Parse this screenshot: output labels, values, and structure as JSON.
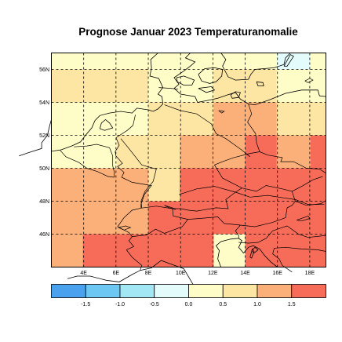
{
  "title": "Prognose Januar 2023 Temperaturanomalie",
  "map": {
    "lon_range": [
      2.0,
      19.0
    ],
    "lat_range": [
      44.0,
      57.0
    ],
    "lat_ticks": [
      "56N",
      "54N",
      "52N",
      "50N",
      "48N",
      "46N"
    ],
    "lat_values": [
      56,
      54,
      52,
      50,
      48,
      46
    ],
    "lon_ticks": [
      "4E",
      "6E",
      "8E",
      "10E",
      "12E",
      "14E",
      "16E",
      "18E"
    ],
    "lon_values": [
      4,
      6,
      8,
      10,
      12,
      14,
      16,
      18
    ],
    "colors": {
      "bin_-1.25": "#5bbcee",
      "bin_-0.25": "#e3fbfb",
      "bin_0.25": "#fefdc7",
      "bin_0.75": "#fde6a3",
      "bin_1.25": "#fcb079",
      "bin_1.75": "#f76b59"
    },
    "grid_columns": [
      [
        2,
        3.95
      ],
      [
        3.95,
        6.05
      ],
      [
        6.05,
        8.0
      ],
      [
        8.0,
        9.95
      ],
      [
        9.95,
        12.05
      ],
      [
        12.05,
        14.0
      ],
      [
        14.0,
        15.95
      ],
      [
        15.95,
        18.05
      ],
      [
        18.05,
        19.0
      ]
    ],
    "grid_rows": [
      [
        56,
        57
      ],
      [
        54,
        56
      ],
      [
        52,
        54
      ],
      [
        50,
        52
      ],
      [
        48,
        50
      ],
      [
        46,
        48
      ],
      [
        44,
        46
      ]
    ],
    "cells": [
      [
        0.25,
        0.25,
        0.25,
        0.25,
        0.25,
        0.25,
        0.25,
        -0.25,
        0.25
      ],
      [
        0.75,
        0.75,
        0.75,
        0.25,
        0.25,
        0.75,
        0.75,
        0.25,
        0.25
      ],
      [
        0.25,
        0.25,
        0.25,
        0.75,
        0.75,
        1.25,
        1.25,
        0.75,
        0.75
      ],
      [
        0.25,
        0.25,
        0.75,
        0.75,
        1.25,
        1.25,
        1.75,
        1.25,
        1.75
      ],
      [
        1.25,
        1.25,
        1.25,
        0.75,
        1.75,
        1.75,
        1.75,
        1.75,
        1.75
      ],
      [
        1.25,
        1.25,
        1.25,
        1.75,
        1.75,
        1.75,
        1.75,
        1.75,
        1.75
      ],
      [
        1.25,
        1.75,
        1.75,
        1.75,
        1.75,
        0.25,
        1.75,
        1.75,
        1.75
      ]
    ]
  },
  "colorbar": {
    "labels": [
      "-1.5",
      "-1.0",
      "-0.5",
      "0.0",
      "0.5",
      "1.0",
      "1.5"
    ],
    "colors": [
      "#4aa2ef",
      "#6cc8f3",
      "#a3e7f5",
      "#e3fbfb",
      "#fefdc7",
      "#fde6a3",
      "#fcb079",
      "#f76b59"
    ]
  }
}
